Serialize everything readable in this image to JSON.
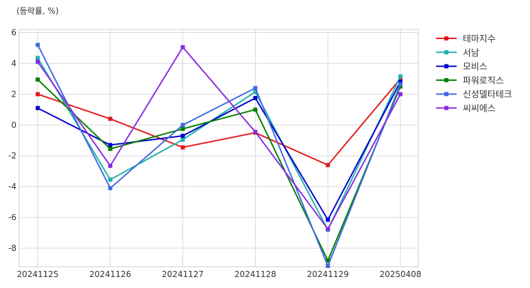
{
  "chart_data": {
    "type": "line",
    "unit_label": "(등락률, %)",
    "categories": [
      "20241125",
      "20241126",
      "20241127",
      "20241128",
      "20241129",
      "20250408"
    ],
    "ylim": [
      -9.2,
      6.2
    ],
    "yticks": [
      6,
      4,
      2,
      0,
      -2,
      -4,
      -6,
      -8
    ],
    "grid": true,
    "legend_position": "right",
    "series": [
      {
        "name": "테마지수",
        "color": "#e31a1c",
        "values": [
          2.0,
          0.4,
          -1.45,
          -0.5,
          -2.6,
          3.0
        ]
      },
      {
        "name": "서남",
        "color": "#20b2aa",
        "values": [
          4.35,
          -3.55,
          -0.95,
          2.15,
          -6.8,
          3.15
        ]
      },
      {
        "name": "모비스",
        "color": "#0000cd",
        "values": [
          1.1,
          -1.3,
          -0.7,
          1.75,
          -6.15,
          2.8
        ]
      },
      {
        "name": "파워로직스",
        "color": "#008000",
        "values": [
          2.95,
          -1.55,
          -0.25,
          1.0,
          -8.8,
          2.5
        ]
      },
      {
        "name": "신성델타테크",
        "color": "#4169e1",
        "values": [
          5.2,
          -4.1,
          0.0,
          2.4,
          -9.15,
          2.65
        ]
      },
      {
        "name": "씨씨에스",
        "color": "#8a2be2",
        "values": [
          4.1,
          -2.65,
          5.05,
          -0.45,
          -6.75,
          2.0
        ]
      }
    ]
  }
}
